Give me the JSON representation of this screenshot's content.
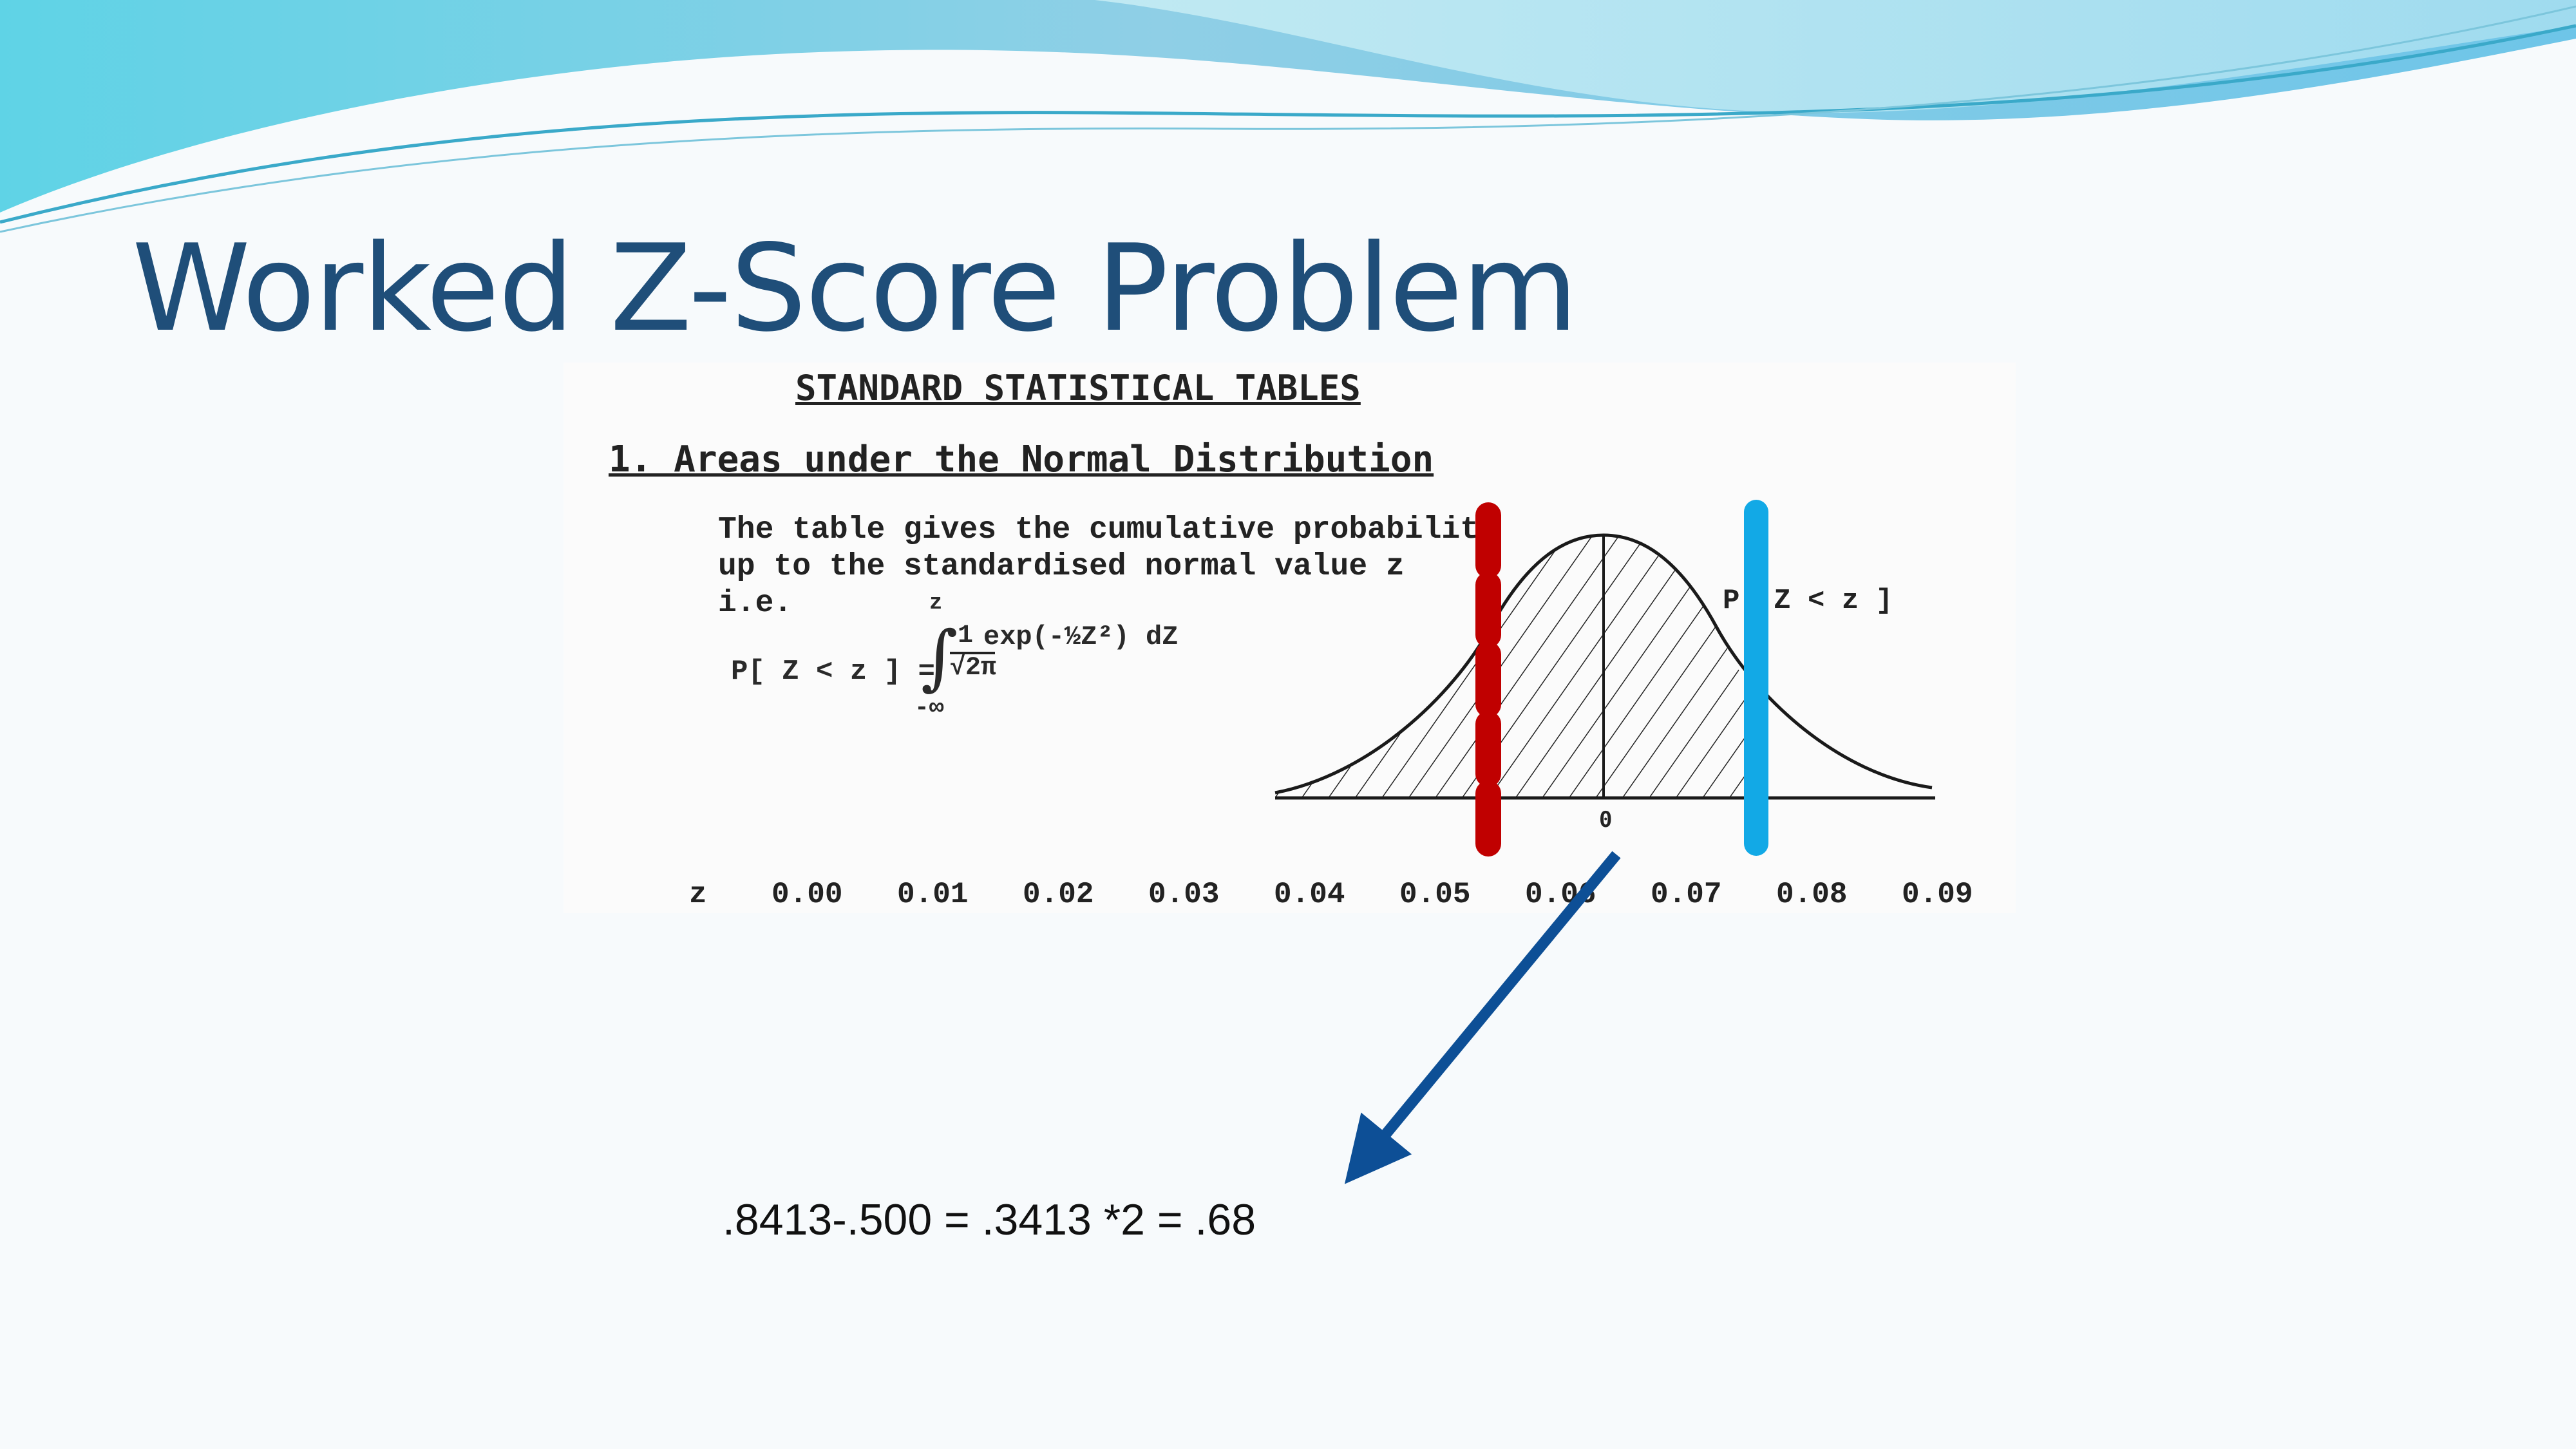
{
  "slide": {
    "title": "Worked Z-Score Problem",
    "equation": ".8413-.500 = .3413 *2 = .68",
    "colors": {
      "title": "#1f4e79",
      "arrow": "#0d4f96",
      "red_marker": "#c00000",
      "blue_marker": "#12a9e6"
    }
  },
  "table_image": {
    "heading": "STANDARD STATISTICAL TABLES",
    "section": "1. Areas under the Normal Distribution",
    "description": [
      "The table gives the cumulative probability",
      "up to the standardised normal value z",
      "i.e."
    ],
    "formula": {
      "lhs": "P[ Z < z ] =",
      "upper_limit": "z",
      "integral": "∫",
      "fraction_numerator": "1",
      "fraction_denominator": "√2π",
      "integrand": "exp(-½Z²) dZ",
      "lower_limit": "-∞"
    },
    "curve_label": "P[ Z < z ]",
    "zero_label": "0",
    "column_headers": [
      "z",
      "0.00",
      "0.01",
      "0.02",
      "0.03",
      "0.04",
      "0.05",
      "0.06",
      "0.07",
      "0.08",
      "0.09"
    ]
  }
}
